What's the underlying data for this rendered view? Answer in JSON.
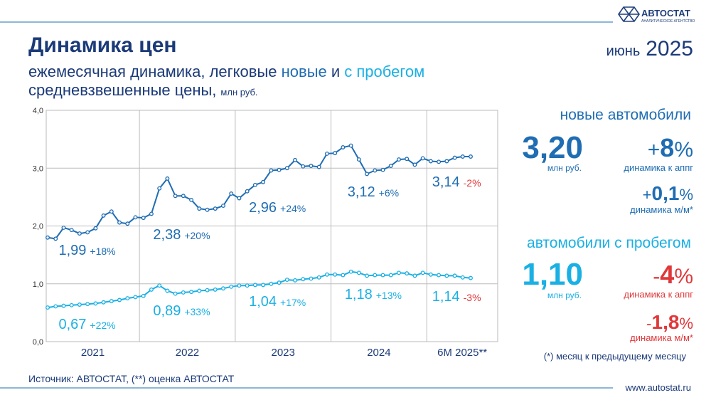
{
  "header": {
    "logo": "АВТОСТАТ",
    "logo_sub": "АНАЛИТИЧЕСКОЕ АГЕНТСТВО",
    "title": "Динамика цен",
    "period_month": "июнь",
    "period_year": "2025",
    "subtitle_1": "ежемесячная динамика, легковые ",
    "subtitle_new": "новые",
    "subtitle_and": " и ",
    "subtitle_used": "с пробегом",
    "subtitle_2": "средневзвешенные цены,",
    "subtitle_unit": "млн руб."
  },
  "chart_data": {
    "type": "line",
    "x_labels": [
      "2021",
      "2022",
      "2023",
      "2024",
      "6М 2025**"
    ],
    "ylim": [
      0,
      4
    ],
    "yticks": [
      {
        "value": 0,
        "label": "0,0"
      },
      {
        "value": 1,
        "label": "1,0"
      },
      {
        "value": 2,
        "label": "2,0"
      },
      {
        "value": 3,
        "label": "3,0"
      },
      {
        "value": 4,
        "label": "4,0"
      }
    ],
    "grid": true,
    "series": [
      {
        "name": "новые",
        "color": "#1f6db3",
        "values": [
          1.8,
          1.78,
          1.97,
          1.93,
          1.87,
          1.89,
          1.96,
          2.18,
          2.25,
          2.06,
          2.04,
          2.15,
          2.14,
          2.21,
          2.65,
          2.82,
          2.52,
          2.52,
          2.45,
          2.3,
          2.28,
          2.3,
          2.35,
          2.56,
          2.48,
          2.6,
          2.71,
          2.76,
          2.96,
          2.97,
          3.0,
          3.14,
          3.03,
          3.04,
          3.02,
          3.25,
          3.26,
          3.36,
          3.39,
          3.15,
          2.9,
          2.96,
          2.97,
          3.04,
          3.15,
          3.16,
          3.06,
          3.17,
          3.12,
          3.11,
          3.12,
          3.18,
          3.2,
          3.2
        ],
        "annotations": [
          {
            "value": "1,99",
            "change": "+18%"
          },
          {
            "value": "2,38",
            "change": "+20%"
          },
          {
            "value": "2,96",
            "change": "+24%"
          },
          {
            "value": "3,12",
            "change": "+6%"
          },
          {
            "value": "3,14",
            "change": "-2%"
          }
        ]
      },
      {
        "name": "с пробегом",
        "color": "#1ab0e4",
        "values": [
          0.59,
          0.61,
          0.62,
          0.63,
          0.64,
          0.65,
          0.66,
          0.68,
          0.7,
          0.72,
          0.75,
          0.77,
          0.79,
          0.9,
          0.97,
          0.88,
          0.83,
          0.85,
          0.86,
          0.88,
          0.89,
          0.9,
          0.92,
          0.95,
          0.97,
          0.97,
          0.98,
          0.98,
          1.0,
          1.02,
          1.07,
          1.06,
          1.08,
          1.09,
          1.11,
          1.16,
          1.16,
          1.15,
          1.21,
          1.19,
          1.14,
          1.15,
          1.15,
          1.15,
          1.19,
          1.18,
          1.14,
          1.19,
          1.16,
          1.15,
          1.14,
          1.14,
          1.11,
          1.1
        ],
        "annotations": [
          {
            "value": "0,67",
            "change": "+22%"
          },
          {
            "value": "0,89",
            "change": "+33%"
          },
          {
            "value": "1,04",
            "change": "+17%"
          },
          {
            "value": "1,18",
            "change": "+13%"
          },
          {
            "value": "1,14",
            "change": "-3%"
          }
        ]
      }
    ]
  },
  "panel": {
    "new": {
      "heading": "новые автомобили",
      "price": "3,20",
      "unit": "млн руб.",
      "yoy": {
        "sign": "+",
        "num": "8",
        "pct": "%"
      },
      "yoy_label": "динамика к аппг",
      "mom": {
        "sign": "+",
        "num": "0,1",
        "pct": "%"
      },
      "mom_label": "динамика м/м*"
    },
    "used": {
      "heading": "автомобили с пробегом",
      "price": "1,10",
      "unit": "млн руб.",
      "yoy": {
        "sign": "-",
        "num": "4",
        "pct": "%"
      },
      "yoy_label": "динамика к аппг",
      "mom": {
        "sign": "-",
        "num": "1,8",
        "pct": "%"
      },
      "mom_label": "динамика м/м*"
    },
    "footnote": "(*) месяц к предыдущему месяцу"
  },
  "footer": {
    "source": "Источник: АВТОСТАТ, (**) оценка АВТОСТАТ",
    "site": "www.autostat.ru"
  }
}
